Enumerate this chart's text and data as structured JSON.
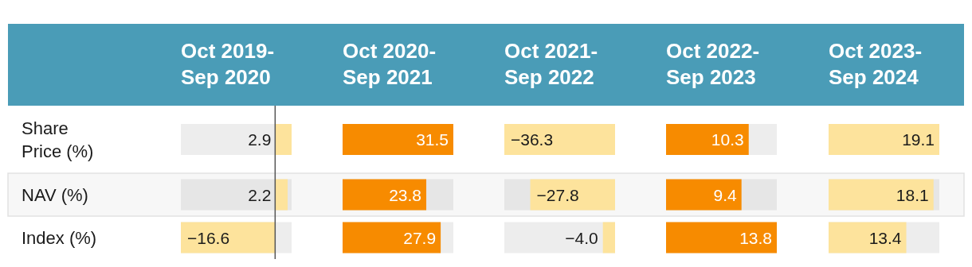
{
  "chart_data": [
    {
      "type": "bar",
      "orientation": "horizontal",
      "title": "Oct 2019-Sep 2020",
      "categories": [
        "Share Price (%)",
        "NAV (%)",
        "Index (%)"
      ],
      "values": [
        2.9,
        2.2,
        -16.6
      ],
      "value_labels": [
        "2.9",
        "2.2",
        "−16.6"
      ],
      "color": "#fde39c",
      "tick_labels": "y"
    },
    {
      "type": "bar",
      "orientation": "horizontal",
      "title": "Oct 2020-Sep 2021",
      "categories": [
        "Share Price (%)",
        "NAV (%)",
        "Index (%)"
      ],
      "values": [
        31.5,
        23.8,
        27.9
      ],
      "value_labels": [
        "31.5",
        "23.8",
        "27.9"
      ],
      "color": "#f78b00",
      "tick_labels": false
    },
    {
      "type": "bar",
      "orientation": "horizontal",
      "title": "Oct 2021-Sep 2022",
      "categories": [
        "Share Price (%)",
        "NAV (%)",
        "Index (%)"
      ],
      "values": [
        -36.3,
        -27.8,
        -4.0
      ],
      "value_labels": [
        "−36.3",
        "−27.8",
        "−4.0"
      ],
      "color": "#fde39c",
      "tick_labels": false
    },
    {
      "type": "bar",
      "orientation": "horizontal",
      "title": "Oct 2022-Sep 2023",
      "categories": [
        "Share Price (%)",
        "NAV (%)",
        "Index (%)"
      ],
      "values": [
        10.3,
        9.4,
        13.8
      ],
      "value_labels": [
        "10.3",
        "9.4",
        "13.8"
      ],
      "color": "#f78b00",
      "tick_labels": false
    },
    {
      "type": "bar",
      "orientation": "horizontal",
      "title": "Oct 2023-Sep 2024",
      "categories": [
        "Share Price (%)",
        "NAV (%)",
        "Index (%)"
      ],
      "values": [
        19.1,
        18.1,
        13.4
      ],
      "value_labels": [
        "19.1",
        "18.1",
        "13.4"
      ],
      "color": "#fde39c",
      "tick_labels": false
    }
  ]
}
